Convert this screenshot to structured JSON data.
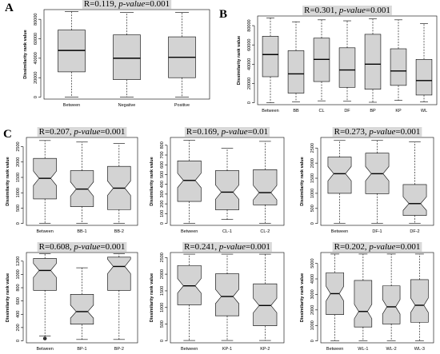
{
  "chart_data": [
    {
      "panel": "A",
      "type": "boxplot",
      "annotation": {
        "r": "R=0.119,",
        "p": "p-value",
        "pv": "=0.001"
      },
      "ylabel": "Dissimilarity rank value",
      "ylim": [
        -2000,
        90000
      ],
      "yticks": [
        0,
        20000,
        40000,
        60000,
        80000
      ],
      "notched": false,
      "categories": [
        "Between",
        "Negative",
        "Positive"
      ],
      "boxes": [
        {
          "min": 100,
          "q1": 26000,
          "median": 48000,
          "q3": 69000,
          "max": 88000
        },
        {
          "min": 100,
          "q1": 18000,
          "median": 40000,
          "q3": 64000,
          "max": 87000
        },
        {
          "min": 100,
          "q1": 20000,
          "median": 41000,
          "q3": 62000,
          "max": 87000
        }
      ]
    },
    {
      "panel": "B",
      "type": "boxplot",
      "annotation": {
        "r": "R=0.301,",
        "p": "p-value",
        "pv": "=0.001"
      },
      "ylabel": "Dissimilarity rank value",
      "ylim": [
        -2000,
        90000
      ],
      "yticks": [
        0,
        20000,
        40000,
        60000,
        80000
      ],
      "notched": false,
      "categories": [
        "Between",
        "BB",
        "CL",
        "DF",
        "BP",
        "KP",
        "WL"
      ],
      "boxes": [
        {
          "min": 100,
          "q1": 27000,
          "median": 50000,
          "q3": 69000,
          "max": 88000
        },
        {
          "min": 1000,
          "q1": 10000,
          "median": 30000,
          "q3": 54000,
          "max": 84000
        },
        {
          "min": 2000,
          "q1": 22000,
          "median": 45000,
          "q3": 67000,
          "max": 86000
        },
        {
          "min": 1500,
          "q1": 16000,
          "median": 34000,
          "q3": 57000,
          "max": 85000
        },
        {
          "min": 500,
          "q1": 14000,
          "median": 40000,
          "q3": 71000,
          "max": 87000
        },
        {
          "min": 2500,
          "q1": 18000,
          "median": 33000,
          "q3": 56000,
          "max": 86000
        },
        {
          "min": 1000,
          "q1": 8000,
          "median": 23000,
          "q3": 45000,
          "max": 82000
        }
      ]
    },
    {
      "panel": "C",
      "type": "boxplot",
      "annotation": {
        "r": "R=0.207,",
        "p": "p-value",
        "pv": "=0.001"
      },
      "ylabel": "Dissimilarity rank value",
      "ylim": [
        -60,
        2800
      ],
      "yticks": [
        0,
        500,
        1000,
        1500,
        2000,
        2500
      ],
      "notched": true,
      "categories": [
        "Between",
        "BB-1",
        "BB-2"
      ],
      "boxes": [
        {
          "min": 10,
          "q1": 800,
          "median": 1470,
          "q3": 2120,
          "max": 2700
        },
        {
          "min": 10,
          "q1": 550,
          "median": 1120,
          "q3": 1720,
          "max": 2650
        },
        {
          "min": 10,
          "q1": 450,
          "median": 1150,
          "q3": 1860,
          "max": 2600
        }
      ]
    },
    {
      "panel": "",
      "type": "boxplot",
      "annotation": {
        "r": "R=0.169,",
        "p": "p-value",
        "pv": "=0.01"
      },
      "ylabel": "Dissimilarity rank value",
      "ylim": [
        -20,
        880
      ],
      "yticks": [
        0,
        100,
        200,
        300,
        400,
        500,
        600,
        700,
        800
      ],
      "notched": true,
      "categories": [
        "Between",
        "CL-1",
        "CL-2"
      ],
      "boxes": [
        {
          "min": 2,
          "q1": 225,
          "median": 440,
          "q3": 640,
          "max": 850
        },
        {
          "min": 40,
          "q1": 140,
          "median": 320,
          "q3": 540,
          "max": 770
        },
        {
          "min": 2,
          "q1": 190,
          "median": 315,
          "q3": 550,
          "max": 840
        }
      ]
    },
    {
      "panel": "",
      "type": "boxplot",
      "annotation": {
        "r": "R=0.273,",
        "p": "p-value",
        "pv": "=0.001"
      },
      "ylabel": "Dissimilarity rank value",
      "ylim": [
        -60,
        2850
      ],
      "yticks": [
        0,
        500,
        1000,
        1500,
        2000,
        2500
      ],
      "notched": true,
      "categories": [
        "Between",
        "DF-1",
        "DF-2"
      ],
      "boxes": [
        {
          "min": 10,
          "q1": 1000,
          "median": 1650,
          "q3": 2200,
          "max": 2750
        },
        {
          "min": 10,
          "q1": 990,
          "median": 1650,
          "q3": 2330,
          "max": 2750
        },
        {
          "min": 10,
          "q1": 270,
          "median": 660,
          "q3": 1290,
          "max": 2700
        }
      ]
    },
    {
      "panel": "",
      "type": "boxplot",
      "annotation": {
        "r": "R=0.608,",
        "p": "p-value",
        "pv": "=0.001"
      },
      "ylabel": "Dissimilarity rank value",
      "ylim": [
        -30,
        1330
      ],
      "yticks": [
        0,
        200,
        400,
        600,
        800,
        1000,
        1200
      ],
      "notched": true,
      "categories": [
        "Between",
        "BP-1",
        "BP-2"
      ],
      "boxes": [
        {
          "min": 70,
          "q1": 760,
          "median": 1060,
          "q3": 1240,
          "max": 1310,
          "outliers": [
            35
          ]
        },
        {
          "min": 20,
          "q1": 250,
          "median": 440,
          "q3": 700,
          "max": 1100
        },
        {
          "min": 20,
          "q1": 760,
          "median": 1120,
          "q3": 1260,
          "max": 1310
        }
      ]
    },
    {
      "panel": "",
      "type": "boxplot",
      "annotation": {
        "r": "R=0.241,",
        "p": "p-value",
        "pv": "=0.001"
      },
      "ylabel": "Dissimilarity rank value",
      "ylim": [
        -60,
        2650
      ],
      "yticks": [
        0,
        500,
        1000,
        1500,
        2000,
        2500
      ],
      "notched": true,
      "categories": [
        "Between",
        "KP-1",
        "KP-2"
      ],
      "boxes": [
        {
          "min": 10,
          "q1": 1080,
          "median": 1650,
          "q3": 2260,
          "max": 2600
        },
        {
          "min": 10,
          "q1": 750,
          "median": 1330,
          "q3": 2010,
          "max": 2600
        },
        {
          "min": 10,
          "q1": 450,
          "median": 1060,
          "q3": 1710,
          "max": 2600
        }
      ]
    },
    {
      "panel": "",
      "type": "boxplot",
      "annotation": {
        "r": "R=0.202,",
        "p": "p-value",
        "pv": "=0.001"
      },
      "ylabel": "Dissimilarity rank value",
      "ylim": [
        -120,
        5700
      ],
      "yticks": [
        0,
        1000,
        2000,
        3000,
        4000,
        5000
      ],
      "notched": true,
      "categories": [
        "Between",
        "WL-1",
        "WL-2",
        "WL-3"
      ],
      "boxes": [
        {
          "min": 20,
          "q1": 1700,
          "median": 3050,
          "q3": 4400,
          "max": 5600
        },
        {
          "min": 20,
          "q1": 900,
          "median": 1900,
          "q3": 3900,
          "max": 5600
        },
        {
          "min": 20,
          "q1": 1100,
          "median": 2200,
          "q3": 3550,
          "max": 5600
        },
        {
          "min": 20,
          "q1": 1200,
          "median": 2300,
          "q3": 3950,
          "max": 5600
        }
      ]
    }
  ]
}
